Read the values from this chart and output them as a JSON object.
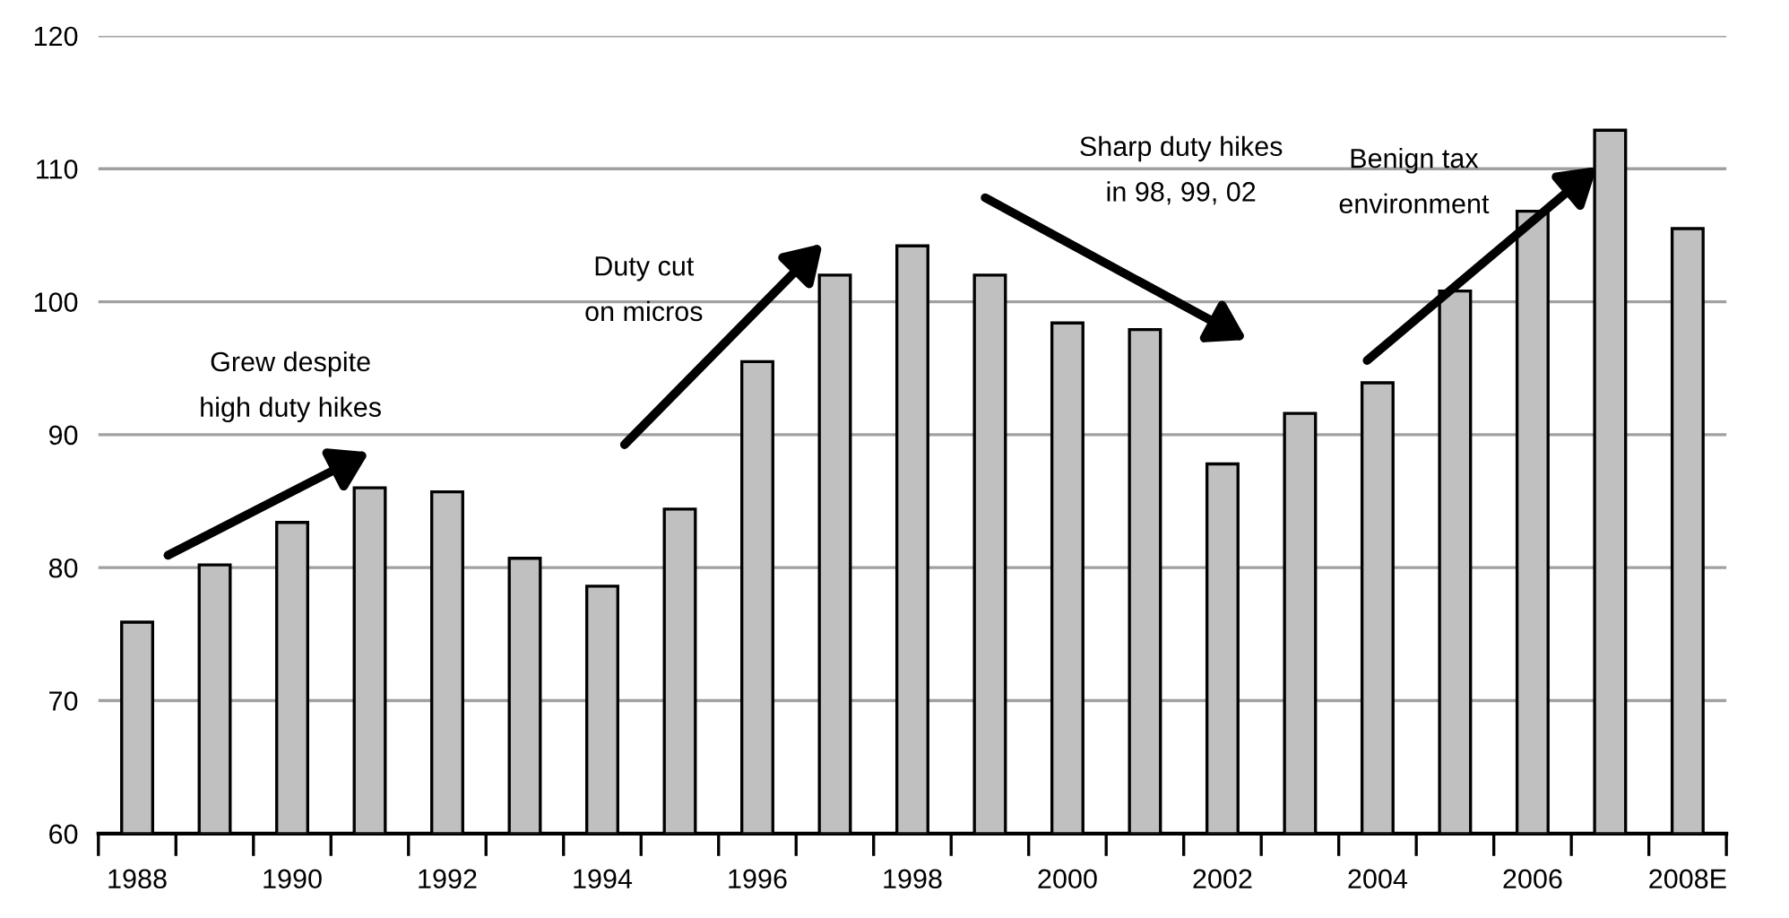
{
  "chart_data": {
    "type": "bar",
    "categories": [
      "1988",
      null,
      "1990",
      null,
      "1992",
      null,
      "1994",
      null,
      "1996",
      null,
      "1998",
      null,
      "2000",
      null,
      "2002",
      null,
      "2004",
      null,
      "2006",
      null,
      "2008E"
    ],
    "values": [
      75.9,
      80.2,
      83.4,
      86.0,
      85.7,
      80.7,
      78.6,
      84.4,
      95.5,
      102.0,
      104.2,
      102.0,
      98.4,
      97.9,
      87.8,
      91.6,
      93.9,
      100.8,
      106.8,
      112.9,
      105.5
    ],
    "color": "#c0c0c0",
    "ylim": [
      60,
      120
    ],
    "yticks": [
      60,
      70,
      80,
      90,
      100,
      110,
      120
    ],
    "grid": "y",
    "legend": false,
    "annotations": [
      "Grew despite\nhigh duty hikes",
      "Duty cut\non micros",
      "Sharp duty hikes\nin 98, 99, 02",
      "Benign tax\nenvironment"
    ]
  }
}
